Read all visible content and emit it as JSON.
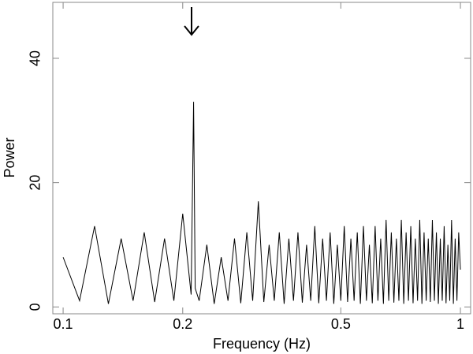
{
  "chart_data": {
    "type": "line",
    "x_label": "Frequency (Hz)",
    "y_label": "Power",
    "x": [
      0.1,
      0.11,
      0.12,
      0.13,
      0.14,
      0.15,
      0.16,
      0.17,
      0.18,
      0.19,
      0.2,
      0.21,
      0.213,
      0.215,
      0.22,
      0.23,
      0.24,
      0.25,
      0.26,
      0.27,
      0.28,
      0.29,
      0.3,
      0.31,
      0.32,
      0.33,
      0.34,
      0.35,
      0.36,
      0.37,
      0.38,
      0.39,
      0.4,
      0.41,
      0.42,
      0.43,
      0.44,
      0.45,
      0.46,
      0.47,
      0.48,
      0.49,
      0.5,
      0.51,
      0.52,
      0.53,
      0.54,
      0.55,
      0.56,
      0.57,
      0.58,
      0.59,
      0.6,
      0.61,
      0.62,
      0.63,
      0.64,
      0.65,
      0.66,
      0.67,
      0.68,
      0.69,
      0.7,
      0.71,
      0.72,
      0.73,
      0.74,
      0.75,
      0.76,
      0.77,
      0.78,
      0.79,
      0.8,
      0.81,
      0.82,
      0.83,
      0.84,
      0.85,
      0.86,
      0.87,
      0.88,
      0.89,
      0.9,
      0.91,
      0.92,
      0.93,
      0.94,
      0.95,
      0.96,
      0.97,
      0.98,
      0.99,
      1.0
    ],
    "values": [
      8,
      1,
      13,
      0.5,
      11,
      1,
      12,
      0.8,
      11,
      1,
      15,
      2,
      33,
      3,
      1,
      10,
      0.5,
      8,
      1,
      11,
      0.6,
      12,
      1,
      17,
      0.8,
      10,
      1,
      12,
      0.5,
      11,
      1,
      12,
      0.7,
      10,
      1,
      13,
      0.6,
      11,
      1,
      12,
      0.5,
      10,
      1,
      13,
      0.8,
      11,
      1,
      12,
      0.5,
      13,
      1,
      10,
      0.6,
      13,
      1,
      11,
      0.5,
      14,
      1,
      12,
      0.7,
      11,
      1,
      14,
      0.5,
      12,
      1,
      13,
      0.6,
      11,
      1,
      14,
      0.5,
      12,
      1,
      11,
      0.8,
      14,
      1,
      12,
      0.5,
      11,
      1,
      13,
      0.6,
      10,
      1,
      14,
      0.5,
      11,
      1,
      12,
      6
    ],
    "color": "#000000",
    "xlim": [
      0.0942,
      1.061
    ],
    "xscale": "log",
    "xticks": [
      0.1,
      0.2,
      0.5,
      1
    ],
    "ylim": [
      -1.1,
      49
    ],
    "yticks": [
      0,
      20,
      40
    ]
  }
}
